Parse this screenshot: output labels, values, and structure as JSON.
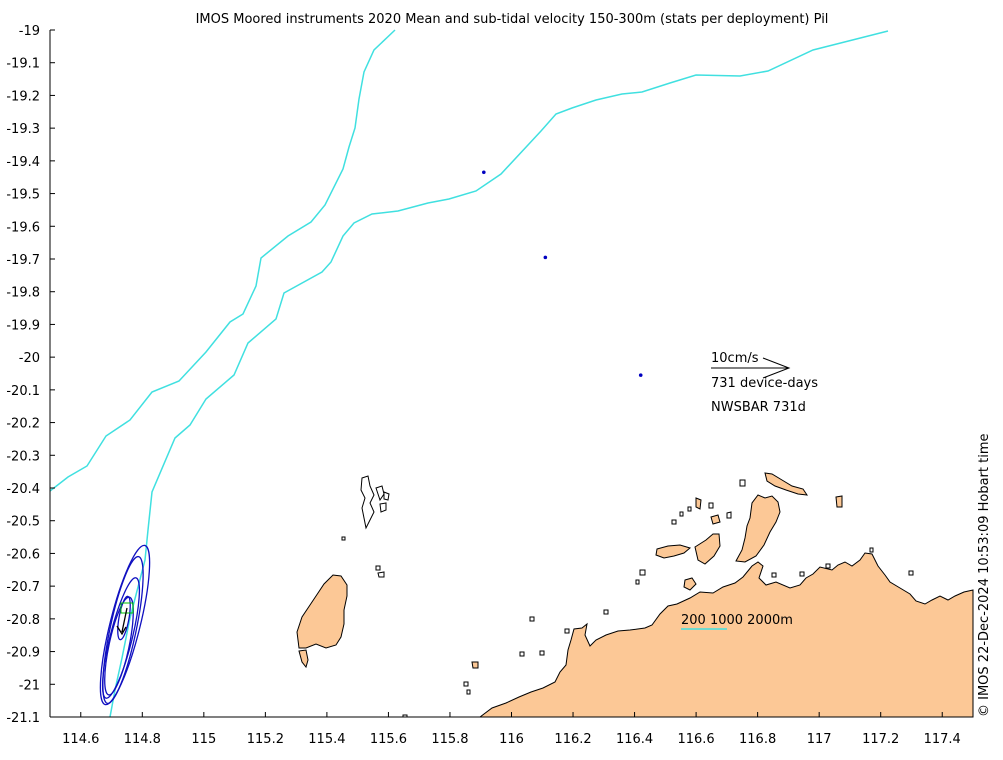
{
  "title": "IMOS Moored instruments 2020 Mean and sub-tidal velocity 150-300m (stats per deployment) Pil",
  "credit": "© IMOS 22-Dec-2024 10:53:09 Hobart time",
  "axes": {
    "xlim": [
      114.5,
      117.5
    ],
    "ylim": [
      -21.1,
      -19.0
    ],
    "x_ticks": [
      "114.6",
      "114.8",
      "115",
      "115.2",
      "115.4",
      "115.6",
      "115.8",
      "116",
      "116.2",
      "116.4",
      "116.6",
      "116.8",
      "117",
      "117.2",
      "117.4"
    ],
    "x_tick_values": [
      114.6,
      114.8,
      115.0,
      115.2,
      115.4,
      115.6,
      115.8,
      116.0,
      116.2,
      116.4,
      116.6,
      116.8,
      117.0,
      117.2,
      117.4
    ],
    "y_ticks": [
      "-19",
      "-19.1",
      "-19.2",
      "-19.3",
      "-19.4",
      "-19.5",
      "-19.6",
      "-19.7",
      "-19.8",
      "-19.9",
      "-20",
      "-20.1",
      "-20.2",
      "-20.3",
      "-20.4",
      "-20.5",
      "-20.6",
      "-20.7",
      "-20.8",
      "-20.9",
      "-21",
      "-21.1"
    ],
    "y_tick_values": [
      -19.0,
      -19.1,
      -19.2,
      -19.3,
      -19.4,
      -19.5,
      -19.6,
      -19.7,
      -19.8,
      -19.9,
      -20.0,
      -20.1,
      -20.2,
      -20.3,
      -20.4,
      -20.5,
      -20.6,
      -20.7,
      -20.8,
      -20.9,
      -21.0,
      -21.1
    ]
  },
  "legend": {
    "scale_label": "10cm/s",
    "device_days": "731 device-days",
    "station": "NWSBAR 731d"
  },
  "isobath_legend": {
    "label": "200 1000 2000m"
  },
  "moorings": [
    {
      "lon": 115.91,
      "lat": -19.435
    },
    {
      "lon": 116.11,
      "lat": -19.695
    },
    {
      "lon": 116.42,
      "lat": -20.055
    }
  ],
  "colors": {
    "land": "#fcc896",
    "isobath": "#40e0e0",
    "ellipse": "#1010c0",
    "mooring": "#0000c0"
  }
}
